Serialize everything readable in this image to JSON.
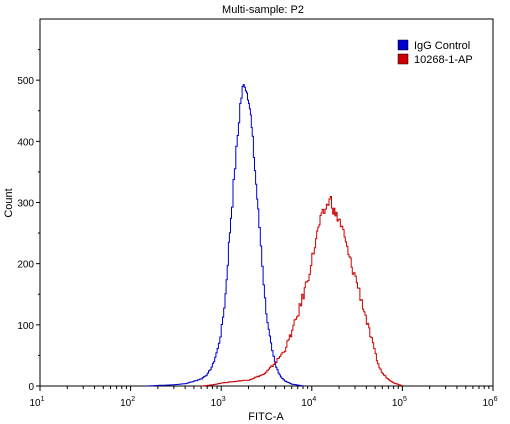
{
  "chart_data": {
    "type": "line",
    "title": "Multi-sample: P2",
    "xlabel": "FITC-A",
    "ylabel": "Count",
    "x_scale": "log",
    "xlim": [
      10,
      1000000
    ],
    "ylim": [
      0,
      600
    ],
    "x_ticks": [
      {
        "value": 10,
        "base": "10",
        "exp": "1"
      },
      {
        "value": 100,
        "base": "10",
        "exp": "2"
      },
      {
        "value": 1000,
        "base": "10",
        "exp": "3"
      },
      {
        "value": 10000,
        "base": "10",
        "exp": "4"
      },
      {
        "value": 100000,
        "base": "10",
        "exp": "5"
      },
      {
        "value": 1000000,
        "base": "10",
        "exp": "6"
      }
    ],
    "y_ticks": [
      "0",
      "100",
      "200",
      "300",
      "400",
      "500"
    ],
    "legend_position": "top-right",
    "series": [
      {
        "name": "IgG Control",
        "color": "#0000cc",
        "points": [
          [
            150,
            0
          ],
          [
            200,
            1
          ],
          [
            300,
            2
          ],
          [
            400,
            4
          ],
          [
            500,
            8
          ],
          [
            600,
            12
          ],
          [
            700,
            20
          ],
          [
            800,
            35
          ],
          [
            900,
            60
          ],
          [
            1000,
            95
          ],
          [
            1100,
            150
          ],
          [
            1200,
            230
          ],
          [
            1300,
            300
          ],
          [
            1400,
            360
          ],
          [
            1500,
            410
          ],
          [
            1600,
            460
          ],
          [
            1700,
            485
          ],
          [
            1800,
            495
          ],
          [
            1900,
            480
          ],
          [
            2000,
            470
          ],
          [
            2100,
            440
          ],
          [
            2200,
            400
          ],
          [
            2400,
            330
          ],
          [
            2600,
            260
          ],
          [
            2800,
            200
          ],
          [
            3000,
            140
          ],
          [
            3300,
            90
          ],
          [
            3600,
            55
          ],
          [
            4000,
            30
          ],
          [
            4500,
            15
          ],
          [
            5000,
            8
          ],
          [
            6000,
            3
          ],
          [
            8000,
            0
          ]
        ]
      },
      {
        "name": "10268-1-AP",
        "color": "#cc0000",
        "points": [
          [
            600,
            0
          ],
          [
            800,
            2
          ],
          [
            1000,
            5
          ],
          [
            1500,
            8
          ],
          [
            2000,
            10
          ],
          [
            3000,
            20
          ],
          [
            4000,
            40
          ],
          [
            5000,
            60
          ],
          [
            6000,
            90
          ],
          [
            7000,
            120
          ],
          [
            8000,
            150
          ],
          [
            9000,
            180
          ],
          [
            10000,
            210
          ],
          [
            11000,
            240
          ],
          [
            12000,
            265
          ],
          [
            13000,
            280
          ],
          [
            14000,
            290
          ],
          [
            15000,
            300
          ],
          [
            16000,
            305
          ],
          [
            17000,
            290
          ],
          [
            18000,
            280
          ],
          [
            19000,
            275
          ],
          [
            20000,
            270
          ],
          [
            22000,
            250
          ],
          [
            25000,
            215
          ],
          [
            28000,
            190
          ],
          [
            31000,
            170
          ],
          [
            35000,
            140
          ],
          [
            40000,
            105
          ],
          [
            45000,
            75
          ],
          [
            50000,
            50
          ],
          [
            55000,
            30
          ],
          [
            60000,
            20
          ],
          [
            70000,
            10
          ],
          [
            80000,
            5
          ],
          [
            100000,
            0
          ]
        ]
      }
    ]
  }
}
